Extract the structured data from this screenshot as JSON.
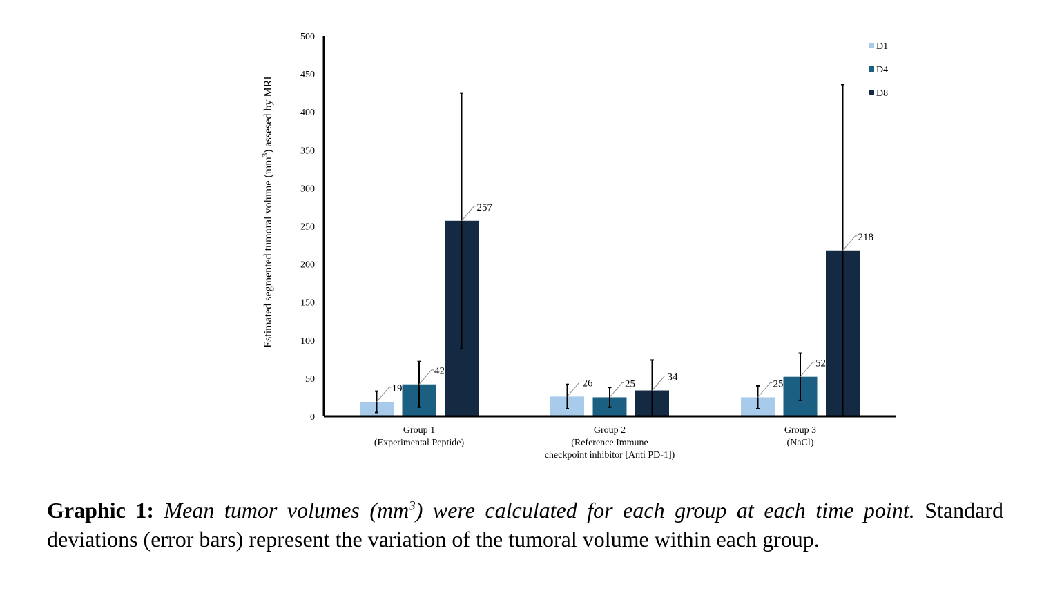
{
  "chart_data": {
    "type": "bar",
    "title": "",
    "xlabel": "",
    "ylabel": {
      "pre": "Estimated segmented tumoral volume (mm",
      "sup": "3",
      "post": ") assesed by MRI"
    },
    "ylim": [
      0,
      500
    ],
    "yticks": [
      0,
      50,
      100,
      150,
      200,
      250,
      300,
      350,
      400,
      450,
      500
    ],
    "grid": false,
    "legend_position": "top-right",
    "categories": [
      [
        "Group 1",
        "(Experimental Peptide)"
      ],
      [
        "Group 2",
        "(Reference Immune",
        "checkpoint inhibitor [Anti PD-1])"
      ],
      [
        "Group 3",
        "(NaCl)"
      ]
    ],
    "series": [
      {
        "name": "D1",
        "color": "#a8cbeb",
        "values": [
          19,
          26,
          25
        ],
        "errors": [
          14,
          16,
          15
        ]
      },
      {
        "name": "D4",
        "color": "#1b5f82",
        "values": [
          42,
          25,
          52
        ],
        "errors": [
          30,
          13,
          31
        ]
      },
      {
        "name": "D8",
        "color": "#142a42",
        "values": [
          257,
          34,
          218
        ],
        "errors": [
          168,
          40,
          218
        ]
      }
    ],
    "data_labels": [
      [
        "19",
        "26",
        "25"
      ],
      [
        "42",
        "25",
        "52"
      ],
      [
        "257",
        "34",
        "218"
      ]
    ]
  },
  "caption": {
    "lead": "Graphic 1:",
    "italic_pre": " Mean tumor volumes (mm",
    "italic_sup": "3",
    "italic_post": ") were calculated for each group at each time point.",
    "rest": " Standard deviations (error bars) represent the variation of the tumoral volume within each group."
  }
}
